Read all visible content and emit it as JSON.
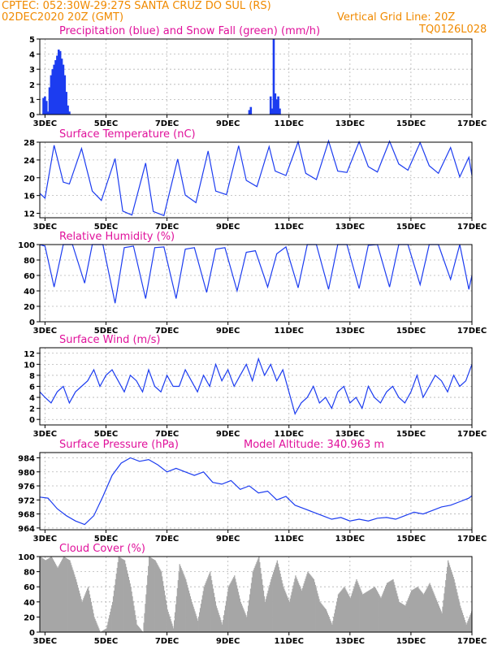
{
  "header": {
    "line1": "CPTEC:   052:30W-29:27S   SANTA CRUZ DO SUL (RS)",
    "line2_left": "02DEC2020 20Z (GMT)",
    "line2_right": "Vertical Grid Line: 20Z",
    "code": "TQ0126L028"
  },
  "colors": {
    "header": "#f08a00",
    "title": "#e0119b",
    "line": "#1c3cf0",
    "snow": "#2ca02c",
    "cloud": "#a6a6a6",
    "wind_arrow": "#000000"
  },
  "chart_data": [
    {
      "type": "bar",
      "title": "Precipitation (blue) and Snow Fall (green) (mm/h)",
      "x_ticks": [
        "3DEC",
        "5DEC",
        "7DEC",
        "9DEC",
        "11DEC",
        "13DEC",
        "15DEC",
        "17DEC"
      ],
      "y_ticks": [
        "0",
        "1",
        "2",
        "3",
        "4",
        "5"
      ],
      "ylim": [
        0,
        5
      ],
      "xlim_days": [
        2.83,
        17.0
      ],
      "series": [
        {
          "x": [
            2.95,
            3.0,
            3.05,
            3.1,
            3.15,
            3.2,
            3.25,
            3.3,
            3.35,
            3.4,
            3.45,
            3.5,
            3.55,
            3.6,
            3.65,
            3.7,
            3.75,
            3.8,
            9.7,
            9.75,
            10.4,
            10.45,
            10.5,
            10.55,
            10.6,
            10.65,
            10.7
          ],
          "values": [
            1.1,
            1.2,
            0.9,
            0.2,
            1.8,
            2.6,
            3.0,
            3.3,
            3.6,
            3.9,
            4.3,
            4.2,
            3.7,
            3.3,
            2.6,
            1.5,
            0.6,
            0.2,
            0.3,
            0.5,
            1.2,
            0.4,
            5.0,
            1.4,
            1.0,
            1.2,
            0.4
          ]
        }
      ]
    },
    {
      "type": "line",
      "title": "Surface Temperature (nC)",
      "x_ticks": [
        "3DEC",
        "5DEC",
        "7DEC",
        "9DEC",
        "11DEC",
        "13DEC",
        "15DEC",
        "17DEC"
      ],
      "y_ticks": [
        "12",
        "16",
        "20",
        "24",
        "28"
      ],
      "ylim": [
        11,
        28
      ],
      "x": [
        2.83,
        3.0,
        3.3,
        3.6,
        3.8,
        4.2,
        4.55,
        4.85,
        5.3,
        5.55,
        5.85,
        6.3,
        6.55,
        6.9,
        7.35,
        7.6,
        7.95,
        8.35,
        8.6,
        8.95,
        9.35,
        9.6,
        9.95,
        10.35,
        10.55,
        10.9,
        11.3,
        11.55,
        11.9,
        12.3,
        12.6,
        12.9,
        13.3,
        13.6,
        13.9,
        14.3,
        14.6,
        14.9,
        15.3,
        15.6,
        15.9,
        16.3,
        16.6,
        16.9,
        17.0
      ],
      "series": [
        {
          "values": [
            16.5,
            15.4,
            27.3,
            19.0,
            18.6,
            26.6,
            17.0,
            14.9,
            24.3,
            12.5,
            11.6,
            23.3,
            12.4,
            11.5,
            24.2,
            16.1,
            14.4,
            26.0,
            17.0,
            16.2,
            27.2,
            19.4,
            18.0,
            27.0,
            21.5,
            20.5,
            28.1,
            21.0,
            19.6,
            28.3,
            21.5,
            21.2,
            28.1,
            22.5,
            21.3,
            28.2,
            23.1,
            21.7,
            27.9,
            22.7,
            21.0,
            26.8,
            20.2,
            24.6,
            20.5
          ]
        }
      ]
    },
    {
      "type": "line",
      "title": "Relative Humidity (%)",
      "x_ticks": [
        "3DEC",
        "5DEC",
        "7DEC",
        "9DEC",
        "11DEC",
        "13DEC",
        "15DEC",
        "17DEC"
      ],
      "y_ticks": [
        "0",
        "20",
        "40",
        "60",
        "80",
        "100"
      ],
      "ylim": [
        0,
        100
      ],
      "x": [
        2.83,
        3.0,
        3.3,
        3.6,
        3.9,
        4.3,
        4.55,
        4.9,
        5.3,
        5.6,
        5.9,
        6.3,
        6.6,
        6.9,
        7.3,
        7.6,
        7.9,
        8.3,
        8.6,
        8.9,
        9.3,
        9.6,
        9.9,
        10.3,
        10.6,
        10.9,
        11.3,
        11.6,
        11.9,
        12.3,
        12.6,
        12.9,
        13.3,
        13.6,
        13.9,
        14.3,
        14.6,
        14.9,
        15.3,
        15.6,
        15.9,
        16.3,
        16.6,
        16.9,
        17.0
      ],
      "series": [
        {
          "values": [
            100,
            98,
            45,
            100,
            100,
            50,
            100,
            100,
            24,
            96,
            98,
            30,
            96,
            97,
            30,
            94,
            96,
            38,
            94,
            96,
            40,
            90,
            92,
            45,
            88,
            97,
            44,
            100,
            100,
            42,
            100,
            100,
            43,
            99,
            100,
            45,
            100,
            100,
            48,
            100,
            100,
            55,
            100,
            42,
            60
          ]
        }
      ]
    },
    {
      "type": "line",
      "title": "Surface Wind (m/s)",
      "x_ticks": [
        "3DEC",
        "5DEC",
        "7DEC",
        "9DEC",
        "11DEC",
        "13DEC",
        "15DEC",
        "17DEC"
      ],
      "y_ticks": [
        "0",
        "2",
        "4",
        "6",
        "8",
        "10",
        "12"
      ],
      "ylim": [
        -1,
        13
      ],
      "x": [
        2.83,
        3.0,
        3.2,
        3.4,
        3.6,
        3.8,
        4.0,
        4.2,
        4.4,
        4.6,
        4.8,
        5.0,
        5.2,
        5.4,
        5.6,
        5.8,
        6.0,
        6.2,
        6.4,
        6.6,
        6.8,
        7.0,
        7.2,
        7.4,
        7.6,
        7.8,
        8.0,
        8.2,
        8.4,
        8.6,
        8.8,
        9.0,
        9.2,
        9.4,
        9.6,
        9.8,
        10.0,
        10.2,
        10.4,
        10.6,
        10.8,
        11.0,
        11.2,
        11.4,
        11.6,
        11.8,
        12.0,
        12.2,
        12.4,
        12.6,
        12.8,
        13.0,
        13.2,
        13.4,
        13.6,
        13.8,
        14.0,
        14.2,
        14.4,
        14.6,
        14.8,
        15.0,
        15.2,
        15.4,
        15.6,
        15.8,
        16.0,
        16.2,
        16.4,
        16.6,
        16.8,
        17.0
      ],
      "series": [
        {
          "values": [
            5,
            4,
            3,
            5,
            6,
            3,
            5,
            6,
            7,
            9,
            6,
            8,
            9,
            7,
            5,
            8,
            7,
            5,
            9,
            6,
            5,
            8,
            6,
            6,
            9,
            7,
            5,
            8,
            6,
            10,
            7,
            9,
            6,
            8,
            10,
            7,
            11,
            8,
            10,
            7,
            9,
            5,
            1,
            3,
            4,
            6,
            3,
            4,
            2,
            5,
            6,
            3,
            4,
            2,
            6,
            4,
            3,
            5,
            6,
            4,
            3,
            5,
            8,
            4,
            6,
            8,
            7,
            5,
            8,
            6,
            7,
            10
          ]
        }
      ]
    },
    {
      "type": "line",
      "title": "Surface Pressure (hPa)",
      "annotation": "Model Altitude: 340.963 m",
      "x_ticks": [
        "3DEC",
        "5DEC",
        "7DEC",
        "9DEC",
        "11DEC",
        "13DEC",
        "15DEC",
        "17DEC"
      ],
      "y_ticks": [
        "964",
        "968",
        "972",
        "976",
        "980",
        "984"
      ],
      "ylim": [
        963.5,
        985.5
      ],
      "x": [
        2.83,
        3.1,
        3.4,
        3.7,
        4.0,
        4.3,
        4.6,
        4.9,
        5.2,
        5.5,
        5.8,
        6.1,
        6.4,
        6.7,
        7.0,
        7.3,
        7.6,
        7.9,
        8.2,
        8.5,
        8.8,
        9.1,
        9.4,
        9.7,
        10.0,
        10.3,
        10.6,
        10.9,
        11.2,
        11.5,
        11.8,
        12.1,
        12.4,
        12.7,
        13.0,
        13.3,
        13.6,
        13.9,
        14.2,
        14.5,
        14.8,
        15.1,
        15.4,
        15.7,
        16.0,
        16.3,
        16.6,
        16.9,
        17.0
      ],
      "series": [
        {
          "values": [
            972.8,
            972.5,
            969.5,
            967.5,
            966.0,
            965.0,
            967.5,
            973.0,
            979.0,
            982.5,
            984.0,
            983.0,
            983.5,
            982.0,
            980.0,
            981.0,
            980.0,
            979.0,
            980.0,
            977.0,
            976.5,
            977.5,
            975.0,
            976.0,
            974.0,
            974.5,
            972.0,
            973.0,
            970.5,
            969.5,
            968.5,
            967.5,
            966.5,
            967.0,
            966.0,
            966.5,
            966.0,
            966.8,
            967.0,
            966.5,
            967.5,
            968.5,
            968.0,
            969.0,
            970.0,
            970.5,
            971.5,
            972.5,
            973.2
          ]
        }
      ]
    },
    {
      "type": "area",
      "title": "Cloud Cover (%)",
      "x_ticks": [
        "3DEC",
        "5DEC",
        "7DEC",
        "9DEC",
        "11DEC",
        "13DEC",
        "15DEC",
        "17DEC"
      ],
      "y_ticks": [
        "0",
        "20",
        "40",
        "60",
        "80",
        "100"
      ],
      "ylim": [
        0,
        100
      ],
      "x": [
        2.83,
        3.0,
        3.2,
        3.4,
        3.6,
        3.8,
        4.0,
        4.2,
        4.4,
        4.6,
        4.8,
        5.0,
        5.2,
        5.4,
        5.6,
        5.8,
        6.0,
        6.2,
        6.4,
        6.6,
        6.8,
        7.0,
        7.2,
        7.4,
        7.6,
        7.8,
        8.0,
        8.2,
        8.4,
        8.6,
        8.8,
        9.0,
        9.2,
        9.4,
        9.6,
        9.8,
        10.0,
        10.2,
        10.4,
        10.6,
        10.8,
        11.0,
        11.2,
        11.4,
        11.6,
        11.8,
        12.0,
        12.2,
        12.4,
        12.6,
        12.8,
        13.0,
        13.2,
        13.4,
        13.6,
        13.8,
        14.0,
        14.2,
        14.4,
        14.6,
        14.8,
        15.0,
        15.2,
        15.4,
        15.6,
        15.8,
        16.0,
        16.2,
        16.4,
        16.6,
        16.8,
        17.0
      ],
      "series": [
        {
          "values": [
            100,
            95,
            100,
            85,
            100,
            95,
            70,
            40,
            60,
            20,
            0,
            5,
            40,
            100,
            95,
            60,
            10,
            0,
            100,
            95,
            80,
            30,
            5,
            90,
            70,
            40,
            15,
            60,
            80,
            35,
            10,
            60,
            75,
            40,
            20,
            80,
            100,
            40,
            70,
            95,
            60,
            40,
            75,
            55,
            80,
            70,
            40,
            30,
            10,
            50,
            60,
            45,
            70,
            50,
            55,
            60,
            45,
            65,
            70,
            40,
            35,
            55,
            60,
            50,
            65,
            45,
            25,
            95,
            70,
            35,
            10,
            30
          ]
        }
      ]
    }
  ]
}
